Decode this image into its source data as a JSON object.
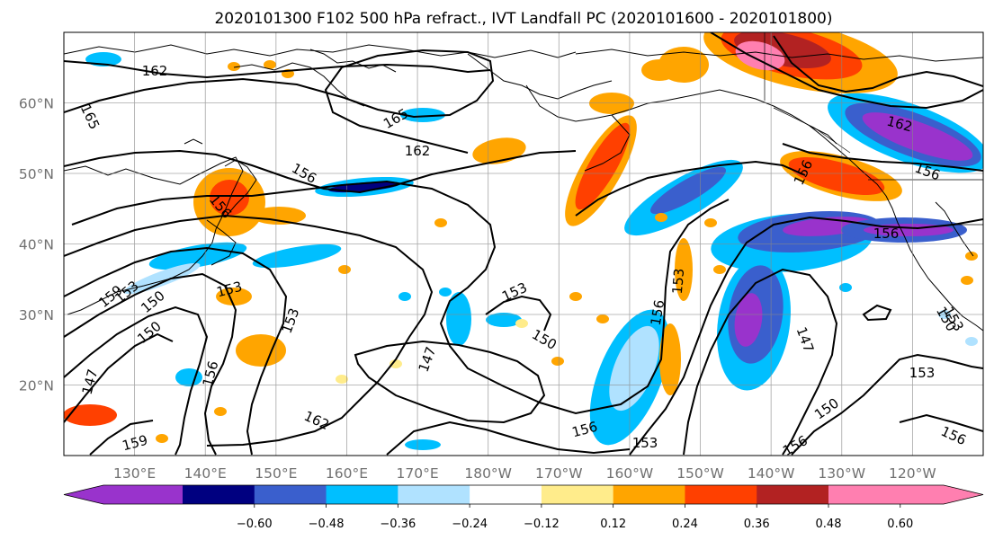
{
  "title": "2020101300 F102 500 hPa refract., IVT Landfall PC (2020101600 - 2020101800)",
  "map": {
    "lon_range": [
      120,
      250
    ],
    "lat_range": [
      10,
      70
    ],
    "grid": true,
    "lat_ticks": [
      "20°N",
      "30°N",
      "40°N",
      "50°N",
      "60°N"
    ],
    "lon_ticks": [
      "130°E",
      "140°E",
      "150°E",
      "160°E",
      "170°E",
      "180°W",
      "170°W",
      "160°W",
      "150°W",
      "140°W",
      "130°W",
      "120°W"
    ]
  },
  "colorbar": {
    "ticks": [
      "−0.60",
      "−0.48",
      "−0.36",
      "−0.24",
      "−0.12",
      "0.12",
      "0.24",
      "0.36",
      "0.48",
      "0.60"
    ],
    "colors": [
      "#9933cc",
      "#000080",
      "#3a5fcd",
      "#00bfff",
      "#b0e2ff",
      "#ffffff",
      "#ffec8b",
      "#ffa500",
      "#ff4000",
      "#b22222",
      "#ff7fb0"
    ]
  },
  "contour_labels": [
    "162",
    "165",
    "165",
    "162",
    "156",
    "156",
    "153",
    "150",
    "159",
    "150",
    "147",
    "153",
    "156",
    "162",
    "159",
    "153",
    "147",
    "153",
    "150",
    "156",
    "156",
    "153",
    "156",
    "162",
    "156",
    "156",
    "150",
    "147",
    "153",
    "156",
    "156",
    "150",
    "153",
    "153"
  ]
}
